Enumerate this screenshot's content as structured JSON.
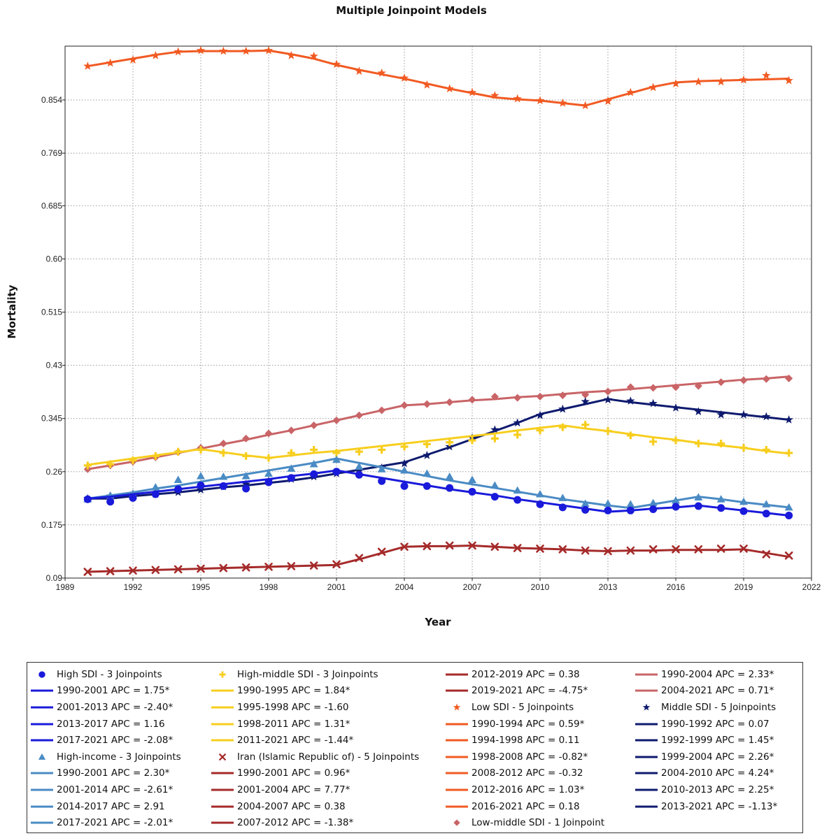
{
  "chart_data": {
    "type": "line",
    "title": "Multiple Joinpoint Models",
    "xlabel": "Year",
    "ylabel": "Mortality",
    "xlim": [
      1989,
      2022
    ],
    "ylim": [
      0.09,
      0.94
    ],
    "xticks": [
      "1989",
      "1992",
      "1995",
      "1998",
      "2001",
      "2004",
      "2007",
      "2010",
      "2013",
      "2016",
      "2019",
      "2022"
    ],
    "yticks": [
      "0.09",
      "0.175",
      "0.26",
      "0.345",
      "0.43",
      "0.515",
      "0.60",
      "0.685",
      "0.769",
      "0.854"
    ],
    "grid": true,
    "legend_position": "bottom",
    "x": [
      1990,
      1991,
      1992,
      1993,
      1994,
      1995,
      1996,
      1997,
      1998,
      1999,
      2000,
      2001,
      2002,
      2003,
      2004,
      2005,
      2006,
      2007,
      2008,
      2009,
      2010,
      2011,
      2012,
      2013,
      2014,
      2015,
      2016,
      2017,
      2018,
      2019,
      2020,
      2021
    ],
    "series": [
      {
        "key": "low",
        "color": "#F15A22",
        "marker": "star",
        "observed": [
          0.908,
          0.913,
          0.918,
          0.925,
          0.931,
          0.933,
          0.932,
          0.932,
          0.933,
          0.925,
          0.924,
          0.911,
          0.9,
          0.897,
          0.889,
          0.878,
          0.872,
          0.866,
          0.861,
          0.856,
          0.853,
          0.849,
          0.845,
          0.852,
          0.866,
          0.874,
          0.88,
          0.883,
          0.883,
          0.886,
          0.893,
          0.885
        ],
        "fitted": [
          0.908,
          0.914,
          0.92,
          0.926,
          0.931,
          0.932,
          0.932,
          0.932,
          0.933,
          0.927,
          0.92,
          0.91,
          0.902,
          0.895,
          0.888,
          0.88,
          0.872,
          0.865,
          0.858,
          0.855,
          0.853,
          0.849,
          0.845,
          0.855,
          0.865,
          0.875,
          0.882,
          0.884,
          0.885,
          0.886,
          0.887,
          0.888
        ]
      },
      {
        "key": "low-middle",
        "color": "#C96467",
        "marker": "diamond",
        "observed": [
          0.264,
          0.27,
          0.276,
          0.283,
          0.291,
          0.298,
          0.305,
          0.313,
          0.321,
          0.326,
          0.334,
          0.342,
          0.35,
          0.358,
          0.366,
          0.368,
          0.371,
          0.375,
          0.38,
          0.378,
          0.38,
          0.382,
          0.383,
          0.388,
          0.395,
          0.394,
          0.395,
          0.397,
          0.403,
          0.406,
          0.408,
          0.409
        ],
        "fitted": [
          0.264,
          0.27,
          0.276,
          0.283,
          0.29,
          0.297,
          0.304,
          0.311,
          0.319,
          0.326,
          0.334,
          0.342,
          0.35,
          0.358,
          0.366,
          0.368,
          0.371,
          0.374,
          0.376,
          0.379,
          0.381,
          0.384,
          0.387,
          0.389,
          0.392,
          0.395,
          0.398,
          0.401,
          0.404,
          0.407,
          0.409,
          0.412
        ]
      },
      {
        "key": "middle",
        "color": "#0E1A6E",
        "marker": "star",
        "observed": [
          0.217,
          0.221,
          0.221,
          0.224,
          0.227,
          0.231,
          0.236,
          0.24,
          0.245,
          0.248,
          0.252,
          0.257,
          0.261,
          0.266,
          0.273,
          0.286,
          0.3,
          0.314,
          0.327,
          0.338,
          0.35,
          0.36,
          0.372,
          0.375,
          0.373,
          0.369,
          0.362,
          0.356,
          0.351,
          0.351,
          0.348,
          0.343
        ],
        "fitted": [
          0.217,
          0.217,
          0.221,
          0.224,
          0.227,
          0.231,
          0.235,
          0.238,
          0.242,
          0.246,
          0.251,
          0.257,
          0.263,
          0.269,
          0.275,
          0.287,
          0.299,
          0.312,
          0.325,
          0.338,
          0.352,
          0.36,
          0.368,
          0.376,
          0.371,
          0.367,
          0.363,
          0.359,
          0.355,
          0.351,
          0.347,
          0.343
        ]
      },
      {
        "key": "high-middle",
        "color": "#F7CE1E",
        "marker": "cross",
        "observed": [
          0.27,
          0.272,
          0.278,
          0.285,
          0.292,
          0.295,
          0.29,
          0.285,
          0.282,
          0.29,
          0.295,
          0.29,
          0.292,
          0.295,
          0.3,
          0.304,
          0.307,
          0.31,
          0.313,
          0.319,
          0.326,
          0.331,
          0.335,
          0.325,
          0.318,
          0.308,
          0.31,
          0.305,
          0.305,
          0.298,
          0.295,
          0.29
        ],
        "fitted": [
          0.271,
          0.276,
          0.281,
          0.286,
          0.291,
          0.296,
          0.291,
          0.286,
          0.282,
          0.286,
          0.29,
          0.293,
          0.297,
          0.301,
          0.305,
          0.309,
          0.313,
          0.317,
          0.321,
          0.326,
          0.33,
          0.334,
          0.329,
          0.325,
          0.32,
          0.315,
          0.311,
          0.306,
          0.302,
          0.298,
          0.293,
          0.289
        ]
      },
      {
        "key": "high-income",
        "color": "#4A8BC4",
        "marker": "triangle",
        "observed": [
          0.216,
          0.222,
          0.225,
          0.235,
          0.247,
          0.253,
          0.252,
          0.253,
          0.257,
          0.265,
          0.272,
          0.279,
          0.268,
          0.264,
          0.262,
          0.257,
          0.252,
          0.247,
          0.238,
          0.23,
          0.224,
          0.218,
          0.209,
          0.209,
          0.208,
          0.21,
          0.214,
          0.219,
          0.216,
          0.212,
          0.208,
          0.203
        ],
        "fitted": [
          0.217,
          0.222,
          0.227,
          0.233,
          0.238,
          0.244,
          0.25,
          0.256,
          0.262,
          0.268,
          0.274,
          0.281,
          0.274,
          0.267,
          0.26,
          0.253,
          0.246,
          0.24,
          0.234,
          0.228,
          0.222,
          0.216,
          0.211,
          0.206,
          0.202,
          0.208,
          0.214,
          0.22,
          0.216,
          0.211,
          0.207,
          0.203
        ]
      },
      {
        "key": "high",
        "color": "#1A1ADB",
        "marker": "circle",
        "observed": [
          0.216,
          0.212,
          0.218,
          0.224,
          0.232,
          0.238,
          0.237,
          0.233,
          0.243,
          0.25,
          0.256,
          0.26,
          0.255,
          0.245,
          0.237,
          0.237,
          0.234,
          0.228,
          0.22,
          0.215,
          0.208,
          0.203,
          0.199,
          0.198,
          0.198,
          0.2,
          0.204,
          0.205,
          0.202,
          0.197,
          0.193,
          0.19
        ],
        "fitted": [
          0.217,
          0.22,
          0.224,
          0.228,
          0.232,
          0.236,
          0.24,
          0.244,
          0.248,
          0.253,
          0.257,
          0.262,
          0.256,
          0.25,
          0.244,
          0.238,
          0.232,
          0.227,
          0.222,
          0.216,
          0.211,
          0.206,
          0.201,
          0.196,
          0.198,
          0.201,
          0.203,
          0.206,
          0.202,
          0.198,
          0.194,
          0.19
        ]
      },
      {
        "key": "iran",
        "color": "#A52A2A",
        "marker": "x",
        "observed": [
          0.1,
          0.101,
          0.102,
          0.103,
          0.104,
          0.105,
          0.106,
          0.107,
          0.108,
          0.109,
          0.11,
          0.112,
          0.122,
          0.132,
          0.14,
          0.141,
          0.142,
          0.142,
          0.14,
          0.138,
          0.137,
          0.136,
          0.134,
          0.133,
          0.134,
          0.136,
          0.136,
          0.136,
          0.137,
          0.137,
          0.128,
          0.126
        ],
        "fitted": [
          0.1,
          0.101,
          0.102,
          0.103,
          0.104,
          0.105,
          0.106,
          0.107,
          0.108,
          0.109,
          0.11,
          0.111,
          0.12,
          0.13,
          0.14,
          0.141,
          0.141,
          0.142,
          0.14,
          0.138,
          0.137,
          0.136,
          0.134,
          0.133,
          0.134,
          0.134,
          0.135,
          0.135,
          0.135,
          0.136,
          0.13,
          0.124
        ]
      }
    ],
    "legend": [
      [
        {
          "symbol": "circle",
          "color": "#1A1ADB",
          "text": "High SDI - 3 Joinpoints"
        },
        {
          "symbol": "line",
          "color": "#1A1ADB",
          "text": "1990-2001 APC  =  1.75*"
        },
        {
          "symbol": "line",
          "color": "#1A1ADB",
          "text": "2001-2013 APC  = -2.40*"
        },
        {
          "symbol": "line",
          "color": "#1A1ADB",
          "text": "2013-2017 APC  =  1.16"
        },
        {
          "symbol": "line",
          "color": "#1A1ADB",
          "text": "2017-2021 APC  = -2.08*"
        },
        {
          "symbol": "triangle",
          "color": "#4A8BC4",
          "text": "High-income - 3 Joinpoints"
        },
        {
          "symbol": "line",
          "color": "#4A8BC4",
          "text": "1990-2001 APC  =  2.30*"
        },
        {
          "symbol": "line",
          "color": "#4A8BC4",
          "text": "2001-2014 APC  = -2.61*"
        },
        {
          "symbol": "line",
          "color": "#4A8BC4",
          "text": "2014-2017 APC  =  2.91"
        },
        {
          "symbol": "line",
          "color": "#4A8BC4",
          "text": "2017-2021 APC  = -2.01*"
        }
      ],
      [
        {
          "symbol": "cross",
          "color": "#F7CE1E",
          "text": "High-middle SDI - 3 Joinpoints"
        },
        {
          "symbol": "line",
          "color": "#F7CE1E",
          "text": "1990-1995 APC  =  1.84*"
        },
        {
          "symbol": "line",
          "color": "#F7CE1E",
          "text": "1995-1998 APC  = -1.60"
        },
        {
          "symbol": "line",
          "color": "#F7CE1E",
          "text": "1998-2011 APC  =  1.31*"
        },
        {
          "symbol": "line",
          "color": "#F7CE1E",
          "text": "2011-2021 APC  = -1.44*"
        },
        {
          "symbol": "x",
          "color": "#A52A2A",
          "text": "Iran (Islamic Republic of) - 5 Joinpoints"
        },
        {
          "symbol": "line",
          "color": "#A52A2A",
          "text": "1990-2001 APC  =  0.96*"
        },
        {
          "symbol": "line",
          "color": "#A52A2A",
          "text": "2001-2004 APC  =  7.77*"
        },
        {
          "symbol": "line",
          "color": "#A52A2A",
          "text": "2004-2007 APC  =  0.38"
        },
        {
          "symbol": "line",
          "color": "#A52A2A",
          "text": "2007-2012 APC  = -1.38*"
        }
      ],
      [
        {
          "symbol": "line",
          "color": "#A52A2A",
          "text": "2012-2019 APC  =  0.38"
        },
        {
          "symbol": "line",
          "color": "#A52A2A",
          "text": "2019-2021 APC  = -4.75*"
        },
        {
          "symbol": "star",
          "color": "#F15A22",
          "text": "Low SDI - 5 Joinpoints"
        },
        {
          "symbol": "line",
          "color": "#F15A22",
          "text": "1990-1994 APC  =  0.59*"
        },
        {
          "symbol": "line",
          "color": "#F15A22",
          "text": "1994-1998 APC  =  0.11"
        },
        {
          "symbol": "line",
          "color": "#F15A22",
          "text": "1998-2008 APC  = -0.82*"
        },
        {
          "symbol": "line",
          "color": "#F15A22",
          "text": "2008-2012 APC  = -0.32"
        },
        {
          "symbol": "line",
          "color": "#F15A22",
          "text": "2012-2016 APC  =  1.03*"
        },
        {
          "symbol": "line",
          "color": "#F15A22",
          "text": "2016-2021 APC  =  0.18"
        },
        {
          "symbol": "diamond",
          "color": "#C96467",
          "text": "Low-middle SDI - 1 Joinpoint"
        }
      ],
      [
        {
          "symbol": "line",
          "color": "#C96467",
          "text": "1990-2004 APC  =  2.33*"
        },
        {
          "symbol": "line",
          "color": "#C96467",
          "text": "2004-2021 APC  =  0.71*"
        },
        {
          "symbol": "star",
          "color": "#0E1A6E",
          "text": "Middle SDI - 5 Joinpoints"
        },
        {
          "symbol": "line",
          "color": "#0E1A6E",
          "text": "1990-1992 APC  =  0.07"
        },
        {
          "symbol": "line",
          "color": "#0E1A6E",
          "text": "1992-1999 APC  =  1.45*"
        },
        {
          "symbol": "line",
          "color": "#0E1A6E",
          "text": "1999-2004 APC  =  2.26*"
        },
        {
          "symbol": "line",
          "color": "#0E1A6E",
          "text": "2004-2010 APC  =  4.24*"
        },
        {
          "symbol": "line",
          "color": "#0E1A6E",
          "text": "2010-2013 APC  =  2.25*"
        },
        {
          "symbol": "line",
          "color": "#0E1A6E",
          "text": "2013-2021 APC  = -1.13*"
        }
      ]
    ]
  }
}
